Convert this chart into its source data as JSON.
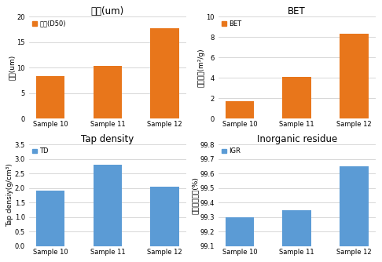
{
  "categories": [
    "Sample 10",
    "Sample 11",
    "Sample 12"
  ],
  "ipdo_values": [
    8.3,
    10.4,
    17.7
  ],
  "ipdo_title": "입도(um)",
  "ipdo_ylabel": "입도(um)",
  "ipdo_legend": "입도(D50)",
  "ipdo_ylim": [
    0,
    20
  ],
  "ipdo_yticks": [
    0,
    5,
    10,
    15,
    20
  ],
  "ipdo_color": "#E8761B",
  "bet_values": [
    1.7,
    4.1,
    8.3
  ],
  "bet_title": "BET",
  "bet_ylabel": "비표면적(m²/g)",
  "bet_legend": "BET",
  "bet_ylim": [
    0,
    10
  ],
  "bet_yticks": [
    0,
    2,
    4,
    6,
    8,
    10
  ],
  "bet_color": "#E8761B",
  "td_values": [
    1.9,
    2.8,
    2.05
  ],
  "td_title": "Tap density",
  "td_ylabel": "Tap densiy(g/cm³)",
  "td_legend": "TD",
  "td_ylim": [
    0,
    3.5
  ],
  "td_yticks": [
    0,
    0.5,
    1.0,
    1.5,
    2.0,
    2.5,
    3.0,
    3.5
  ],
  "td_color": "#5B9BD5",
  "igr_values": [
    99.3,
    99.35,
    99.65
  ],
  "igr_title": "Inorganic residue",
  "igr_ylabel": "무기잔류물량(%)",
  "igr_legend": "IGR",
  "igr_ylim": [
    99.1,
    99.8
  ],
  "igr_yticks": [
    99.1,
    99.2,
    99.3,
    99.4,
    99.5,
    99.6,
    99.7,
    99.8
  ],
  "igr_color": "#5B9BD5",
  "bg_color": "#FFFFFF",
  "title_fontsize": 8.5,
  "label_fontsize": 6.5,
  "tick_fontsize": 6,
  "legend_fontsize": 6
}
